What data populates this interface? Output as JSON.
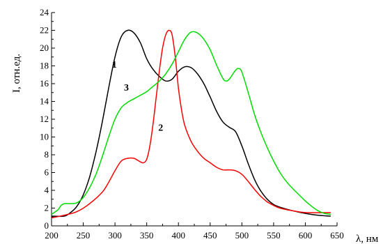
{
  "chart_data": {
    "type": "line",
    "title": "",
    "xlabel": "λ, нм",
    "ylabel": "I, отн.ед.",
    "xlim": [
      200,
      650
    ],
    "ylim": [
      0,
      24
    ],
    "xticks": [
      200,
      250,
      300,
      350,
      400,
      450,
      500,
      550,
      600,
      650
    ],
    "yticks": [
      0,
      2,
      4,
      6,
      8,
      10,
      12,
      14,
      16,
      18,
      20,
      22,
      24
    ],
    "grid": false,
    "legend": "none",
    "series": [
      {
        "name": "1",
        "color": "#000000",
        "points": [
          [
            200,
            1.1
          ],
          [
            220,
            1.1
          ],
          [
            230,
            1.5
          ],
          [
            240,
            2.2
          ],
          [
            250,
            3.5
          ],
          [
            260,
            5.5
          ],
          [
            270,
            8.3
          ],
          [
            280,
            11.7
          ],
          [
            290,
            15.5
          ],
          [
            300,
            19.0
          ],
          [
            310,
            21.3
          ],
          [
            320,
            22.0
          ],
          [
            330,
            21.7
          ],
          [
            340,
            20.6
          ],
          [
            350,
            18.8
          ],
          [
            360,
            17.6
          ],
          [
            370,
            16.8
          ],
          [
            380,
            16.3
          ],
          [
            390,
            16.5
          ],
          [
            400,
            17.4
          ],
          [
            410,
            17.9
          ],
          [
            420,
            17.8
          ],
          [
            430,
            17.1
          ],
          [
            440,
            16.0
          ],
          [
            450,
            14.5
          ],
          [
            460,
            12.9
          ],
          [
            470,
            11.7
          ],
          [
            480,
            11.1
          ],
          [
            490,
            10.6
          ],
          [
            500,
            9.0
          ],
          [
            510,
            7.0
          ],
          [
            520,
            5.2
          ],
          [
            530,
            3.9
          ],
          [
            540,
            3.0
          ],
          [
            550,
            2.4
          ],
          [
            560,
            2.1
          ],
          [
            580,
            1.7
          ],
          [
            600,
            1.4
          ],
          [
            620,
            1.2
          ],
          [
            640,
            1.1
          ]
        ]
      },
      {
        "name": "2",
        "color": "#ff0000",
        "points": [
          [
            200,
            0.9
          ],
          [
            220,
            1.2
          ],
          [
            240,
            1.6
          ],
          [
            260,
            2.5
          ],
          [
            280,
            3.8
          ],
          [
            290,
            4.9
          ],
          [
            300,
            6.2
          ],
          [
            310,
            7.3
          ],
          [
            320,
            7.6
          ],
          [
            330,
            7.6
          ],
          [
            340,
            7.2
          ],
          [
            345,
            7.1
          ],
          [
            350,
            7.5
          ],
          [
            355,
            9.0
          ],
          [
            360,
            11.5
          ],
          [
            365,
            14.5
          ],
          [
            370,
            17.5
          ],
          [
            375,
            20.0
          ],
          [
            380,
            21.5
          ],
          [
            385,
            22.0
          ],
          [
            390,
            21.5
          ],
          [
            395,
            19.0
          ],
          [
            400,
            15.5
          ],
          [
            405,
            13.0
          ],
          [
            410,
            11.3
          ],
          [
            420,
            9.5
          ],
          [
            430,
            8.4
          ],
          [
            440,
            7.6
          ],
          [
            450,
            7.1
          ],
          [
            460,
            6.6
          ],
          [
            470,
            6.3
          ],
          [
            480,
            6.3
          ],
          [
            490,
            6.2
          ],
          [
            500,
            5.8
          ],
          [
            510,
            5.0
          ],
          [
            520,
            4.1
          ],
          [
            530,
            3.3
          ],
          [
            540,
            2.7
          ],
          [
            550,
            2.3
          ],
          [
            560,
            2.0
          ],
          [
            580,
            1.7
          ],
          [
            600,
            1.5
          ],
          [
            640,
            1.5
          ]
        ]
      },
      {
        "name": "3",
        "color": "#00dd00",
        "points": [
          [
            200,
            1.3
          ],
          [
            210,
            1.8
          ],
          [
            215,
            2.3
          ],
          [
            220,
            2.5
          ],
          [
            230,
            2.5
          ],
          [
            240,
            2.6
          ],
          [
            250,
            3.2
          ],
          [
            260,
            4.3
          ],
          [
            270,
            5.8
          ],
          [
            280,
            7.8
          ],
          [
            290,
            10.0
          ],
          [
            300,
            12.0
          ],
          [
            310,
            13.3
          ],
          [
            320,
            13.9
          ],
          [
            330,
            14.3
          ],
          [
            340,
            14.7
          ],
          [
            350,
            15.1
          ],
          [
            360,
            15.7
          ],
          [
            370,
            16.3
          ],
          [
            380,
            17.1
          ],
          [
            390,
            18.2
          ],
          [
            400,
            19.6
          ],
          [
            410,
            21.0
          ],
          [
            420,
            21.8
          ],
          [
            430,
            21.7
          ],
          [
            440,
            21.0
          ],
          [
            450,
            19.8
          ],
          [
            460,
            18.1
          ],
          [
            470,
            16.6
          ],
          [
            475,
            16.3
          ],
          [
            480,
            16.5
          ],
          [
            490,
            17.5
          ],
          [
            495,
            17.7
          ],
          [
            500,
            17.3
          ],
          [
            510,
            15.0
          ],
          [
            520,
            12.5
          ],
          [
            530,
            10.5
          ],
          [
            540,
            8.8
          ],
          [
            550,
            7.3
          ],
          [
            560,
            6.0
          ],
          [
            570,
            5.0
          ],
          [
            580,
            4.2
          ],
          [
            590,
            3.5
          ],
          [
            600,
            2.8
          ],
          [
            610,
            2.2
          ],
          [
            620,
            1.7
          ],
          [
            630,
            1.4
          ],
          [
            640,
            1.3
          ]
        ]
      }
    ],
    "annotations": [
      {
        "text": "1",
        "x": 299,
        "y": 17.8
      },
      {
        "text": "2",
        "x": 372,
        "y": 10.7
      },
      {
        "text": "3",
        "x": 318,
        "y": 15.2
      }
    ]
  }
}
